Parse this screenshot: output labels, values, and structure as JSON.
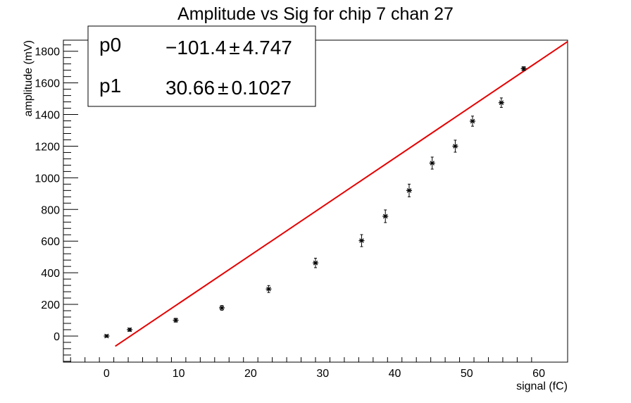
{
  "chart_data": {
    "type": "scatter",
    "title": "Amplitude vs Sig for chip 7 chan 27",
    "xlabel": "signal (fC)",
    "ylabel": "amplitude (mV)",
    "xlim": [
      -6,
      64
    ],
    "ylim": [
      -165,
      1870
    ],
    "x_ticks": [
      0,
      10,
      20,
      30,
      40,
      50,
      60
    ],
    "y_ticks": [
      0,
      200,
      400,
      600,
      800,
      1000,
      1200,
      1400,
      1600,
      1800
    ],
    "grid": false,
    "series": [
      {
        "points": [
          {
            "x": 0.0,
            "y": 0,
            "err": 8
          },
          {
            "x": 3.2,
            "y": 40,
            "err": 10
          },
          {
            "x": 9.6,
            "y": 100,
            "err": 12
          },
          {
            "x": 16.0,
            "y": 178,
            "err": 15
          },
          {
            "x": 22.5,
            "y": 297,
            "err": 22
          },
          {
            "x": 29.0,
            "y": 462,
            "err": 30
          },
          {
            "x": 35.4,
            "y": 603,
            "err": 38
          },
          {
            "x": 38.7,
            "y": 757,
            "err": 40
          },
          {
            "x": 42.0,
            "y": 920,
            "err": 40
          },
          {
            "x": 45.2,
            "y": 1093,
            "err": 38
          },
          {
            "x": 48.4,
            "y": 1200,
            "err": 38
          },
          {
            "x": 50.8,
            "y": 1358,
            "err": 32
          },
          {
            "x": 54.8,
            "y": 1475,
            "err": 30
          },
          {
            "x": 57.9,
            "y": 1690,
            "err": 12
          }
        ]
      }
    ],
    "fit": {
      "color": "#e60000",
      "x_range": [
        1.2,
        64
      ],
      "params": [
        {
          "name": "p0",
          "value": "−101.4",
          "pm": "±",
          "error": "4.747",
          "num": -101.4
        },
        {
          "name": "p1",
          "value": "30.66",
          "pm": "±",
          "error": "0.1027",
          "num": 30.66
        }
      ]
    },
    "legend_position": "top-left"
  }
}
